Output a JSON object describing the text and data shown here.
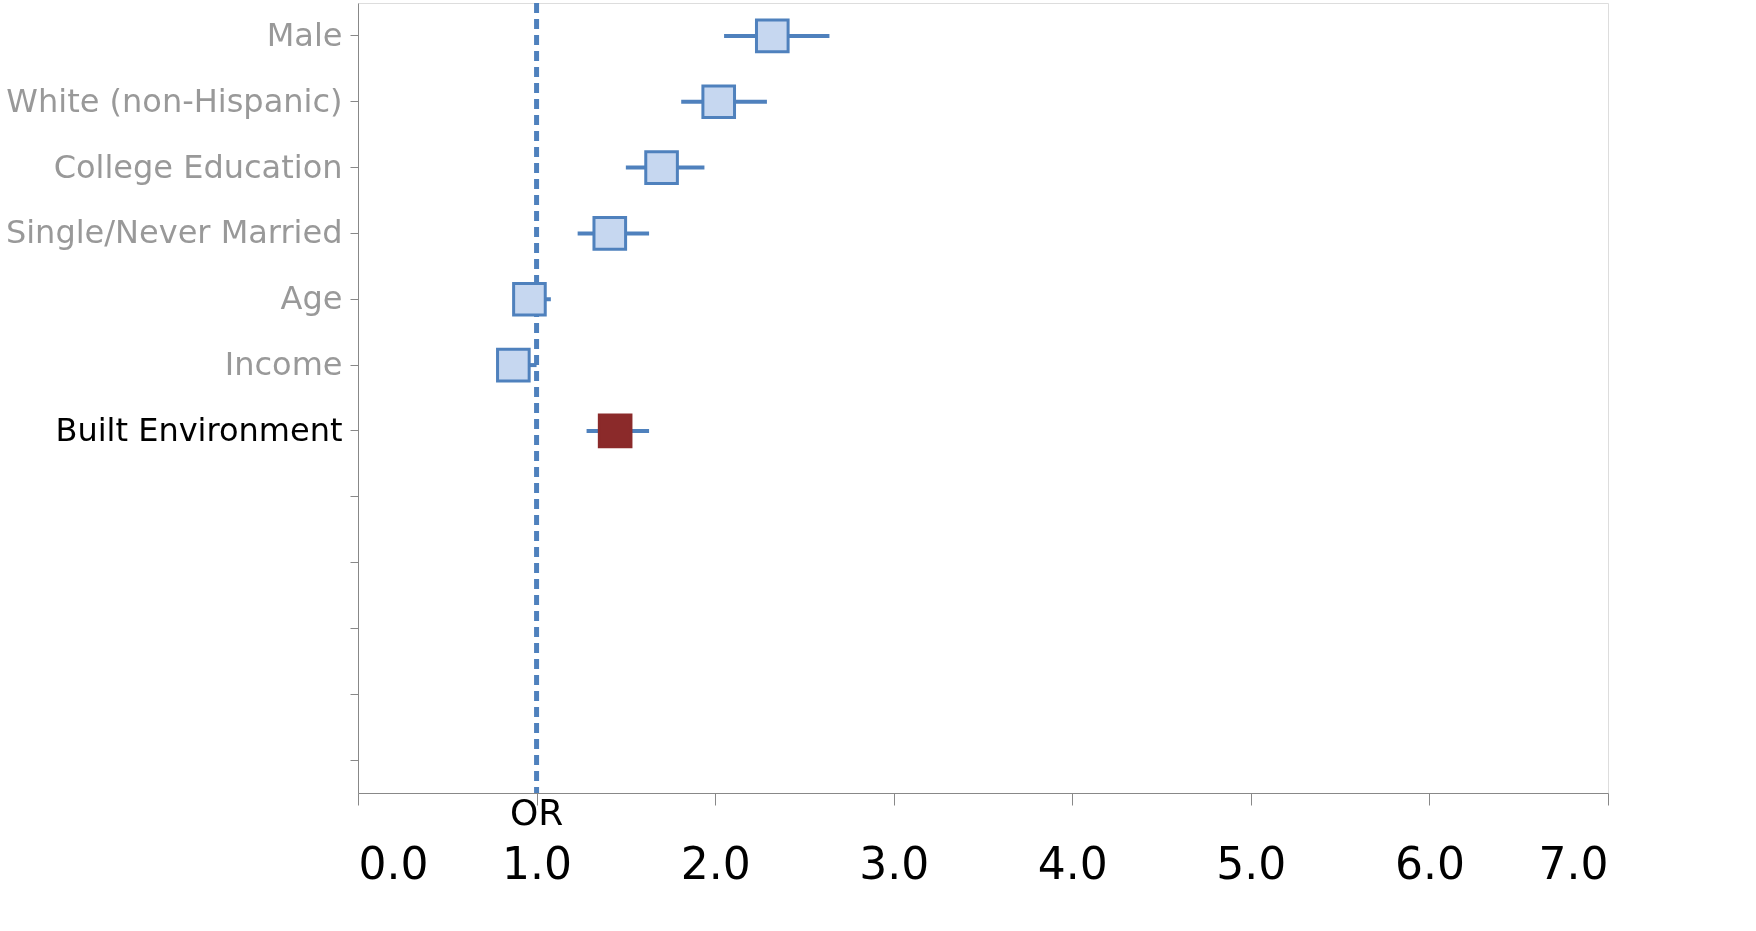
{
  "chart_data": {
    "type": "scatter",
    "orientation": "horizontal",
    "marker": "square",
    "grid": false,
    "categories": [
      "Male",
      "White (non-Hispanic)",
      "College Education",
      "Single/Never Married",
      "Age",
      "Income",
      "Built Environment",
      null,
      null,
      null,
      null,
      null
    ],
    "series": [
      {
        "color": "#4f81bd",
        "values": [
          2.32,
          2.02,
          1.7,
          1.41,
          0.96,
          0.87,
          1.44,
          null,
          null,
          null,
          null,
          null
        ],
        "colors": [
          "#4f81bd",
          "#4f81bd",
          "#4f81bd",
          "#4f81bd",
          "#4f81bd",
          "#4f81bd",
          "#8b2a2a",
          null,
          null,
          null,
          null,
          null
        ],
        "errors": [
          [
            2.05,
            2.64
          ],
          [
            1.81,
            2.29
          ],
          [
            1.5,
            1.94
          ],
          [
            1.23,
            1.63
          ],
          [
            0.96,
            1.08
          ],
          [
            0.87,
            1.0
          ],
          [
            1.28,
            1.63
          ],
          null,
          null,
          null,
          null,
          null
        ]
      }
    ],
    "xlim": [
      0,
      7
    ],
    "xticks": [
      {
        "value": 0,
        "label": "0.0"
      },
      {
        "value": 1,
        "label": "1.0"
      },
      {
        "value": 2,
        "label": "2.0"
      },
      {
        "value": 3,
        "label": "3.0"
      },
      {
        "value": 4,
        "label": "4.0"
      },
      {
        "value": 5,
        "label": "5.0"
      },
      {
        "value": 6,
        "label": "6.0"
      },
      {
        "value": 7,
        "label": "7.0"
      }
    ],
    "ref_lines": [
      {
        "axis": "x",
        "value": 1,
        "label": "OR",
        "color": "#4f81bd",
        "line_style": "dashed"
      }
    ]
  }
}
